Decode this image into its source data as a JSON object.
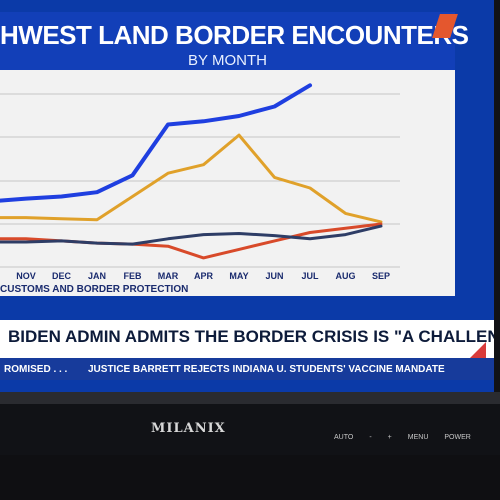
{
  "headline": {
    "title": "HWEST LAND BORDER ENCOUNTERS",
    "subtitle": "BY MONTH"
  },
  "chart": {
    "source": "CUSTOMS AND BORDER PROTECTION",
    "chart_data": {
      "type": "line",
      "categories": [
        "NOV",
        "DEC",
        "JAN",
        "FEB",
        "MAR",
        "APR",
        "MAY",
        "JUN",
        "JUL",
        "AUG",
        "SEP"
      ],
      "series": [
        {
          "color": "#1f3fe0",
          "values": [
            28,
            30,
            34,
            50,
            98,
            101,
            106,
            115,
            135,
            null,
            null
          ]
        },
        {
          "color": "#e0a12a",
          "values": [
            10,
            9,
            8,
            30,
            52,
            60,
            88,
            48,
            38,
            14,
            6
          ]
        },
        {
          "color": "#d84a2a",
          "values": [
            -10,
            -12,
            -14,
            -15,
            -17,
            -28,
            -20,
            -12,
            -4,
            0,
            4
          ]
        },
        {
          "color": "#2e3d66",
          "values": [
            -13,
            -12,
            -14,
            -15,
            -10,
            -6,
            -5,
            -7,
            -10,
            -6,
            2
          ]
        }
      ]
    }
  },
  "lower_third": {
    "headline": "BIDEN ADMIN ADMITS THE BORDER CRISIS IS \"A CHALLENGE\"",
    "ticker_left": "ROMISED . . .",
    "ticker_right": "JUSTICE BARRETT REJECTS INDIANA U. STUDENTS' VACCINE MANDATE"
  },
  "bezel": {
    "brand": "MILANIX",
    "controls": [
      "AUTO",
      "-",
      "+",
      "MENU",
      "POWER"
    ]
  },
  "colors": {
    "channel_blue": "#123fb8",
    "headline_white": "#ffffff",
    "ticker_blue": "#173b9b",
    "accent_orange": "#e4572e"
  }
}
